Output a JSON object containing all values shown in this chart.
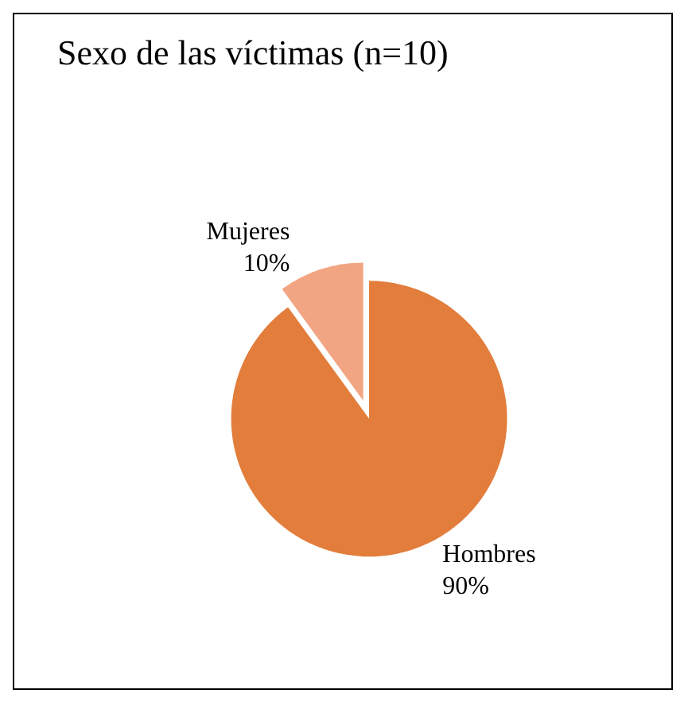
{
  "chart_data": {
    "type": "pie",
    "title": "Sexo de las víctimas (n=10)",
    "categories": [
      "Hombres",
      "Mujeres"
    ],
    "values": [
      90,
      10
    ],
    "colors": [
      "#e27d3c",
      "#f2a582"
    ],
    "value_labels": [
      "90%",
      "10%"
    ],
    "legend": false
  }
}
